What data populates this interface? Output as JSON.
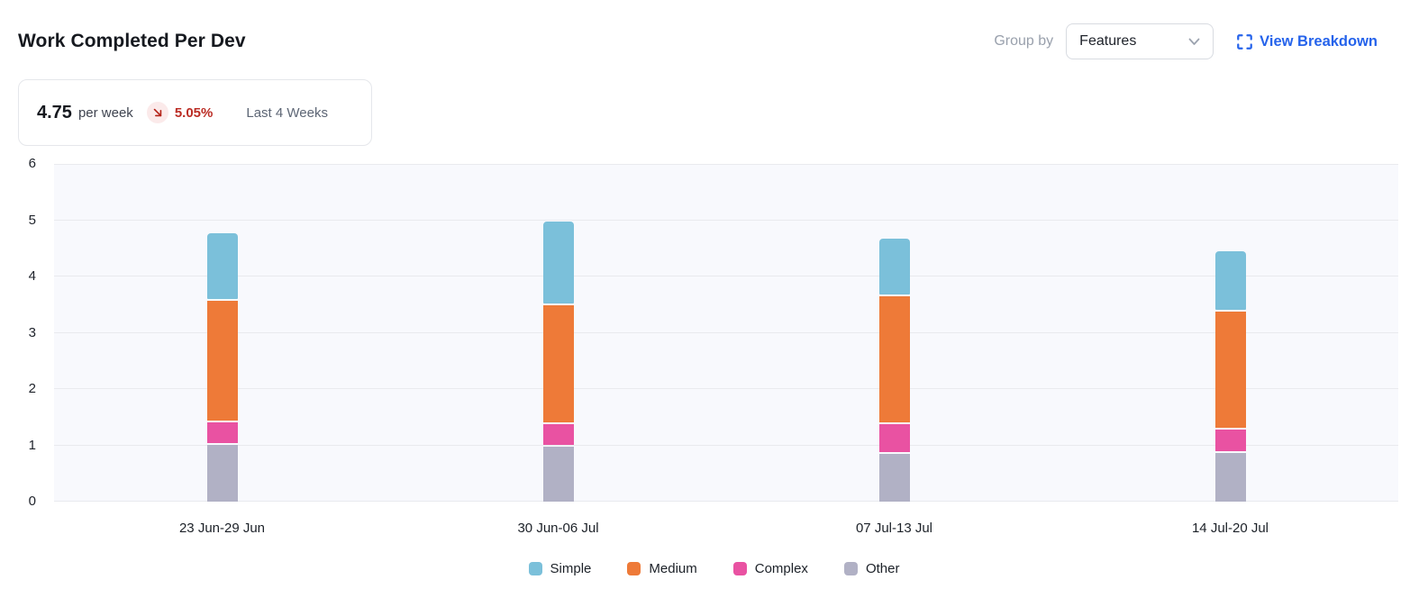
{
  "header": {
    "title": "Work Completed Per Dev",
    "group_by_label": "Group by",
    "group_by_value": "Features",
    "view_breakdown_label": "View Breakdown"
  },
  "summary": {
    "value": "4.75",
    "unit": "per week",
    "trend_direction": "down",
    "change_pct": "5.05%",
    "period": "Last 4 Weeks"
  },
  "colors": {
    "accent_blue": "#2563eb",
    "negative_red": "#bb2d25",
    "badge_bg": "#fbeaea",
    "plot_bg": "#f8f9fd",
    "grid_color": "#e9eaee"
  },
  "chart_data": {
    "type": "bar",
    "stacked": true,
    "title": "Work Completed Per Dev",
    "categories": [
      "23 Jun-29 Jun",
      "30 Jun-06 Jul",
      "07 Jul-13 Jul",
      "14 Jul-20 Jul"
    ],
    "series": [
      {
        "name": "Simple",
        "color": "#7bc0da",
        "values": [
          1.2,
          1.48,
          1.02,
          1.06
        ]
      },
      {
        "name": "Medium",
        "color": "#ee7a38",
        "values": [
          2.17,
          2.12,
          2.28,
          2.11
        ]
      },
      {
        "name": "Complex",
        "color": "#e952a2",
        "values": [
          0.37,
          0.37,
          0.52,
          0.4
        ]
      },
      {
        "name": "Other",
        "color": "#b1b1c5",
        "values": [
          1.03,
          1.0,
          0.86,
          0.88
        ]
      }
    ],
    "stack_order_bottom_to_top": [
      "Other",
      "Complex",
      "Medium",
      "Simple"
    ],
    "totals": [
      4.77,
      4.97,
      4.68,
      4.45
    ],
    "ylim": [
      0,
      6
    ],
    "y_ticks": [
      0,
      1,
      2,
      3,
      4,
      5,
      6
    ],
    "xlabel": "",
    "ylabel": "",
    "grid": true,
    "legend_position": "bottom"
  }
}
